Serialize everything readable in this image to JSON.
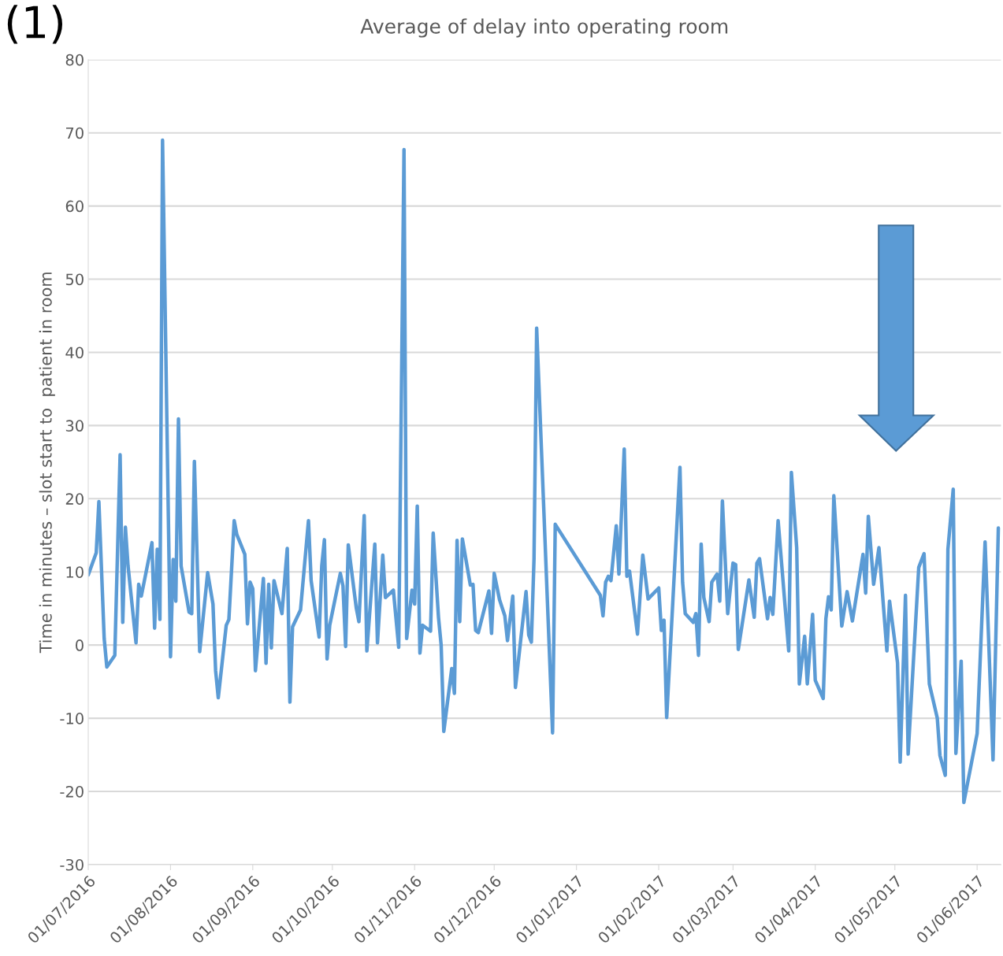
{
  "chart_data": {
    "type": "line",
    "title": "Average of delay into operating room",
    "ylabel": "Time in minutes – slot start to  patient in room",
    "annotations": [
      "(1)"
    ],
    "x": [
      "2016-07-01",
      "2016-07-04",
      "2016-07-05",
      "2016-07-07",
      "2016-07-08",
      "2016-07-11",
      "2016-07-13",
      "2016-07-14",
      "2016-07-15",
      "2016-07-16",
      "2016-07-19",
      "2016-07-20",
      "2016-07-21",
      "2016-07-25",
      "2016-07-26",
      "2016-07-27",
      "2016-07-28",
      "2016-07-29",
      "2016-08-01",
      "2016-08-02",
      "2016-08-03",
      "2016-08-04",
      "2016-08-05",
      "2016-08-08",
      "2016-08-09",
      "2016-08-10",
      "2016-08-12",
      "2016-08-15",
      "2016-08-17",
      "2016-08-18",
      "2016-08-19",
      "2016-08-22",
      "2016-08-23",
      "2016-08-25",
      "2016-08-26",
      "2016-08-29",
      "2016-08-30",
      "2016-08-31",
      "2016-09-01",
      "2016-09-02",
      "2016-09-05",
      "2016-09-06",
      "2016-09-07",
      "2016-09-08",
      "2016-09-09",
      "2016-09-12",
      "2016-09-14",
      "2016-09-15",
      "2016-09-16",
      "2016-09-19",
      "2016-09-22",
      "2016-09-23",
      "2016-09-26",
      "2016-09-27",
      "2016-09-28",
      "2016-09-29",
      "2016-09-30",
      "2016-10-04",
      "2016-10-05",
      "2016-10-06",
      "2016-10-07",
      "2016-10-10",
      "2016-10-11",
      "2016-10-13",
      "2016-10-14",
      "2016-10-17",
      "2016-10-18",
      "2016-10-20",
      "2016-10-21",
      "2016-10-24",
      "2016-10-26",
      "2016-10-28",
      "2016-10-29",
      "2016-10-31",
      "2016-11-01",
      "2016-11-02",
      "2016-11-03",
      "2016-11-04",
      "2016-11-07",
      "2016-11-08",
      "2016-11-10",
      "2016-11-11",
      "2016-11-12",
      "2016-11-15",
      "2016-11-16",
      "2016-11-17",
      "2016-11-18",
      "2016-11-19",
      "2016-11-22",
      "2016-11-23",
      "2016-11-24",
      "2016-11-25",
      "2016-11-29",
      "2016-11-30",
      "2016-12-01",
      "2016-12-03",
      "2016-12-05",
      "2016-12-06",
      "2016-12-08",
      "2016-12-09",
      "2016-12-13",
      "2016-12-14",
      "2016-12-15",
      "2016-12-16",
      "2016-12-17",
      "2016-12-23",
      "2016-12-24",
      "2017-01-10",
      "2017-01-11",
      "2017-01-12",
      "2017-01-13",
      "2017-01-14",
      "2017-01-16",
      "2017-01-17",
      "2017-01-19",
      "2017-01-20",
      "2017-01-21",
      "2017-01-24",
      "2017-01-26",
      "2017-01-28",
      "2017-02-01",
      "2017-02-02",
      "2017-02-03",
      "2017-02-04",
      "2017-02-09",
      "2017-02-10",
      "2017-02-11",
      "2017-02-14",
      "2017-02-15",
      "2017-02-16",
      "2017-02-17",
      "2017-02-18",
      "2017-02-20",
      "2017-02-21",
      "2017-02-23",
      "2017-02-24",
      "2017-02-25",
      "2017-02-27",
      "2017-03-01",
      "2017-03-02",
      "2017-03-03",
      "2017-03-07",
      "2017-03-09",
      "2017-03-10",
      "2017-03-11",
      "2017-03-14",
      "2017-03-15",
      "2017-03-16",
      "2017-03-18",
      "2017-03-22",
      "2017-03-23",
      "2017-03-25",
      "2017-03-26",
      "2017-03-28",
      "2017-03-29",
      "2017-03-31",
      "2017-04-01",
      "2017-04-04",
      "2017-04-05",
      "2017-04-06",
      "2017-04-07",
      "2017-04-08",
      "2017-04-11",
      "2017-04-13",
      "2017-04-15",
      "2017-04-19",
      "2017-04-20",
      "2017-04-21",
      "2017-04-23",
      "2017-04-25",
      "2017-04-28",
      "2017-04-29",
      "2017-05-02",
      "2017-05-03",
      "2017-05-05",
      "2017-05-06",
      "2017-05-10",
      "2017-05-12",
      "2017-05-14",
      "2017-05-17",
      "2017-05-18",
      "2017-05-20",
      "2017-05-21",
      "2017-05-23",
      "2017-05-24",
      "2017-05-26",
      "2017-05-27",
      "2017-06-01",
      "2017-06-04",
      "2017-06-07",
      "2017-06-09"
    ],
    "series": [
      {
        "color": "#5b9bd5",
        "values": [
          9.6,
          12.6,
          19.6,
          0.9,
          -3.0,
          -1.4,
          26.0,
          3.1,
          16.1,
          10.8,
          0.3,
          8.3,
          6.7,
          14.0,
          2.3,
          13.1,
          3.5,
          69.0,
          -1.6,
          11.7,
          6.0,
          30.9,
          10.8,
          4.5,
          4.3,
          25.1,
          -0.9,
          9.9,
          5.6,
          -3.5,
          -7.2,
          2.7,
          3.5,
          17.0,
          15.1,
          12.4,
          2.9,
          8.6,
          7.7,
          -3.5,
          9.1,
          -2.5,
          8.3,
          -0.4,
          8.8,
          4.3,
          13.2,
          -7.8,
          2.5,
          4.8,
          17.0,
          8.8,
          1.1,
          10.8,
          14.4,
          -1.9,
          2.7,
          9.8,
          8.1,
          -0.2,
          13.7,
          5.1,
          3.2,
          17.7,
          -0.8,
          13.8,
          0.3,
          12.3,
          6.5,
          7.5,
          -0.3,
          67.7,
          0.9,
          7.5,
          5.6,
          19.0,
          -1.1,
          2.7,
          1.9,
          15.3,
          3.8,
          0,
          -11.8,
          -3.2,
          -6.6,
          14.3,
          3.2,
          14.5,
          8.2,
          8.3,
          2.0,
          1.7,
          7.4,
          1.6,
          9.8,
          6.2,
          4.0,
          0.6,
          6.7,
          -5.8,
          7.3,
          1.4,
          0.4,
          11.8,
          43.3,
          -12.0,
          16.5,
          6.8,
          4.0,
          8.6,
          9.4,
          8.8,
          16.3,
          9.7,
          26.8,
          9.4,
          10.1,
          1.5,
          12.3,
          6.3,
          7.8,
          2.0,
          3.4,
          -9.9,
          24.3,
          8.6,
          4.3,
          3.1,
          4.3,
          -1.4,
          13.8,
          6.5,
          3.2,
          8.6,
          9.7,
          6.0,
          19.7,
          4.3,
          11.2,
          11.0,
          -0.6,
          8.9,
          3.8,
          11.2,
          11.8,
          3.6,
          6.5,
          4.2,
          17.0,
          -0.8,
          23.6,
          13.3,
          -5.3,
          1.2,
          -5.3,
          4.2,
          -4.8,
          -7.3,
          3.6,
          6.6,
          4.8,
          20.4,
          2.6,
          7.3,
          3.3,
          12.4,
          7.1,
          17.6,
          8.3,
          13.3,
          -0.8,
          6.0,
          -2.4,
          -16.0,
          6.8,
          -14.9,
          10.6,
          12.5,
          -5.3,
          -10.0,
          -15.1,
          -17.8,
          13.1,
          21.3,
          -14.8,
          -2.2,
          -21.5,
          -12.1,
          14.1,
          -15.7,
          16.0
        ]
      }
    ],
    "xlim": [
      "2016-07-01",
      "2017-06-10"
    ],
    "xticks": [
      {
        "value": "2016-07-01",
        "label": "01/07/2016"
      },
      {
        "value": "2016-08-01",
        "label": "01/08/2016"
      },
      {
        "value": "2016-09-01",
        "label": "01/09/2016"
      },
      {
        "value": "2016-10-01",
        "label": "01/10/2016"
      },
      {
        "value": "2016-11-01",
        "label": "01/11/2016"
      },
      {
        "value": "2016-12-01",
        "label": "01/12/2016"
      },
      {
        "value": "2017-01-01",
        "label": "01/01/2017"
      },
      {
        "value": "2017-02-01",
        "label": "01/02/2017"
      },
      {
        "value": "2017-03-01",
        "label": "01/03/2017"
      },
      {
        "value": "2017-04-01",
        "label": "01/04/2017"
      },
      {
        "value": "2017-05-01",
        "label": "01/05/2017"
      },
      {
        "value": "2017-06-01",
        "label": "01/06/2017"
      }
    ],
    "ylim": [
      -30,
      80
    ],
    "yticks": [
      -30,
      -20,
      -10,
      0,
      10,
      20,
      30,
      40,
      50,
      60,
      70,
      80
    ],
    "grid": "y",
    "marker": "none",
    "line_style": "solid",
    "legend": false
  }
}
